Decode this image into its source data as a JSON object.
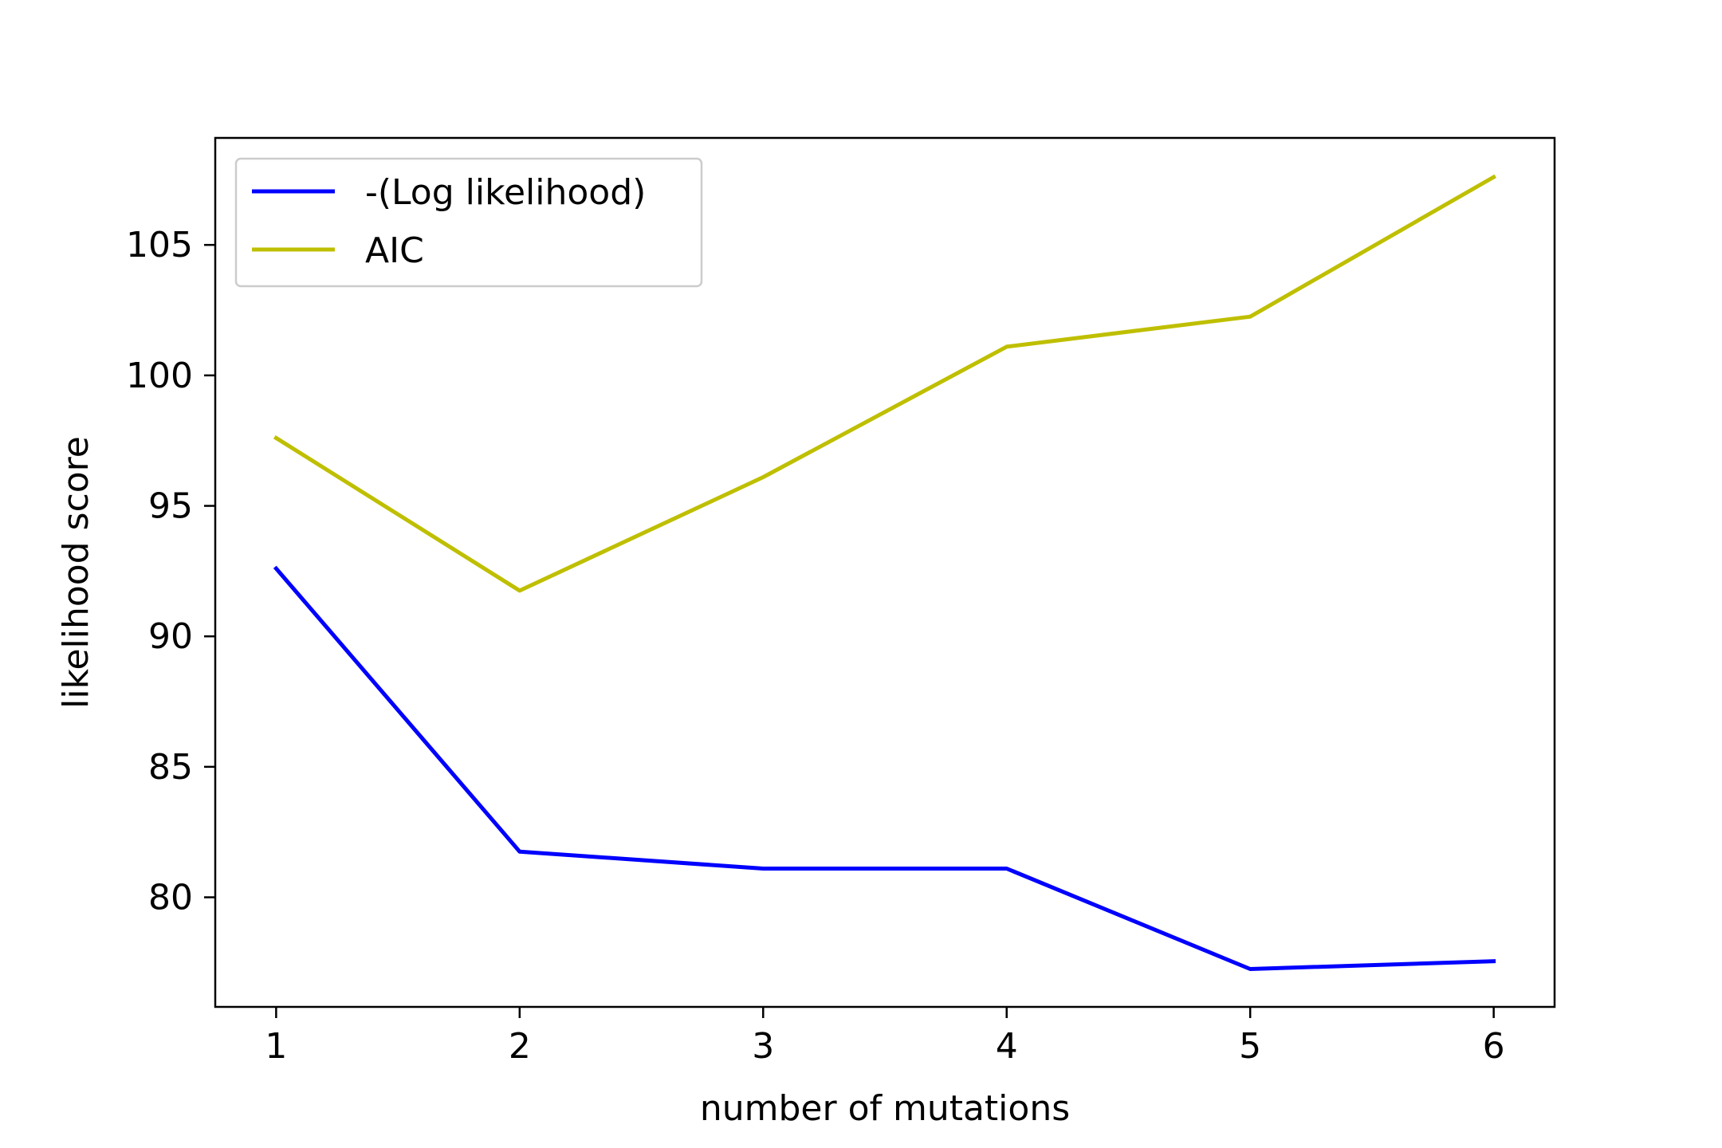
{
  "chart_data": {
    "type": "line",
    "title": "",
    "xlabel": "number of mutations",
    "ylabel": "likelihood score",
    "x": [
      1,
      2,
      3,
      4,
      5,
      6
    ],
    "xticks": [
      1,
      2,
      3,
      4,
      5,
      6
    ],
    "yticks": [
      80,
      85,
      90,
      95,
      100,
      105
    ],
    "xlim": [
      0.75,
      6.25
    ],
    "ylim": [
      75.8,
      109.1
    ],
    "grid": false,
    "legend_position": "top-left",
    "series": [
      {
        "name": "-(Log likelihood)",
        "color": "#0000ff",
        "values": [
          92.6,
          81.75,
          81.1,
          81.1,
          77.25,
          77.55
        ]
      },
      {
        "name": "AIC",
        "color": "#bfbf00",
        "values": [
          97.6,
          91.75,
          96.1,
          101.1,
          102.25,
          107.6
        ]
      }
    ]
  }
}
